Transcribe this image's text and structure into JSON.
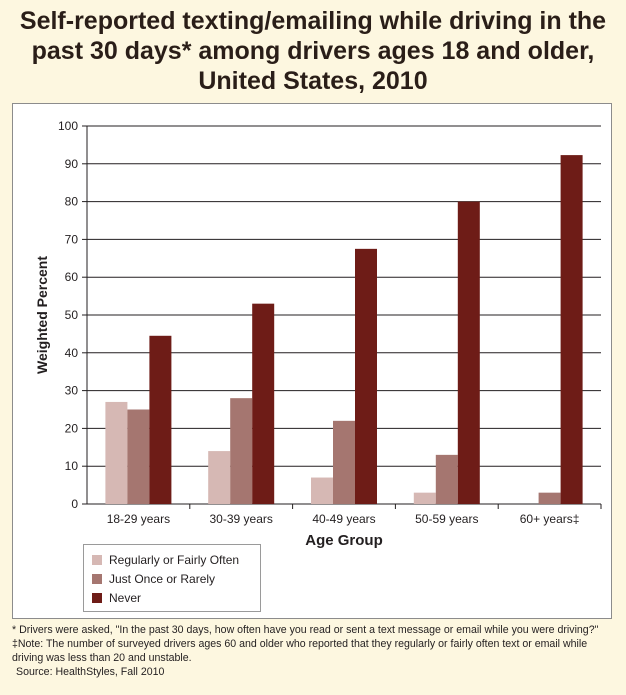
{
  "title_lines": [
    "Self-reported texting/emailing while driving in the",
    "past 30 days* among drivers ages 18 and older,",
    "United States, 2010"
  ],
  "chart_data": {
    "type": "bar",
    "title": "Self-reported texting/emailing while driving in the past 30 days* among drivers ages 18 and older, United States, 2010",
    "xlabel": "Age Group",
    "ylabel": "Weighted Percent",
    "ylim": [
      0,
      100
    ],
    "yticks": [
      0,
      10,
      20,
      30,
      40,
      50,
      60,
      70,
      80,
      90,
      100
    ],
    "grid": true,
    "legend_position": "bottom-left",
    "categories": [
      "18-29 years",
      "30-39 years",
      "40-49 years",
      "50-59 years",
      "60+ years‡"
    ],
    "series": [
      {
        "name": "Regularly or Fairly Often",
        "color": "#d6b8b4",
        "values": [
          27,
          14,
          7,
          3,
          null
        ]
      },
      {
        "name": "Just Once or Rarely",
        "color": "#a57670",
        "values": [
          25,
          28,
          22,
          13,
          3
        ]
      },
      {
        "name": "Never",
        "color": "#6e1c17",
        "values": [
          44.5,
          53,
          67.5,
          80,
          92.3
        ]
      }
    ]
  },
  "notes": {
    "asterisk": "* Drivers were asked, \"In the past 30 days, how often have you read or sent a text message or email while you were driving?\"",
    "double_dagger": "‡Note: The number of surveyed drivers ages 60 and older who reported that they regularly or fairly often text or email while driving was less than 20 and unstable.",
    "source": "Source: HealthStyles, Fall 2010"
  }
}
